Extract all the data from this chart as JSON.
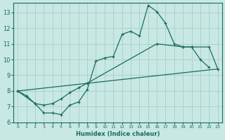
{
  "xlabel": "Humidex (Indice chaleur)",
  "xlim": [
    -0.5,
    23.5
  ],
  "ylim": [
    6,
    13.6
  ],
  "yticks": [
    6,
    7,
    8,
    9,
    10,
    11,
    12,
    13
  ],
  "xticks": [
    0,
    1,
    2,
    3,
    4,
    5,
    6,
    7,
    8,
    9,
    10,
    11,
    12,
    13,
    14,
    15,
    16,
    17,
    18,
    19,
    20,
    21,
    22,
    23
  ],
  "bg_color": "#c8e8e4",
  "grid_color": "#aaccc8",
  "line_color": "#1a6b60",
  "line1_x": [
    0,
    1,
    2,
    3,
    4,
    5,
    6,
    7,
    8,
    9,
    10,
    11,
    12,
    13,
    14,
    15,
    16,
    17,
    18,
    19,
    20,
    21,
    22
  ],
  "line1_y": [
    8.0,
    7.7,
    7.2,
    6.6,
    6.6,
    6.5,
    7.1,
    7.3,
    8.1,
    9.9,
    10.1,
    10.2,
    11.6,
    11.8,
    11.5,
    13.45,
    13.05,
    12.3,
    11.0,
    10.8,
    10.8,
    10.0,
    9.5
  ],
  "line2_x": [
    0,
    2,
    3,
    4,
    5,
    6,
    7,
    8,
    16,
    19,
    20,
    22,
    23
  ],
  "line2_y": [
    8.0,
    7.2,
    7.1,
    7.2,
    7.5,
    7.9,
    8.2,
    8.5,
    11.0,
    10.8,
    10.8,
    10.8,
    9.4
  ],
  "line3_x": [
    0,
    23
  ],
  "line3_y": [
    8.0,
    9.4
  ]
}
